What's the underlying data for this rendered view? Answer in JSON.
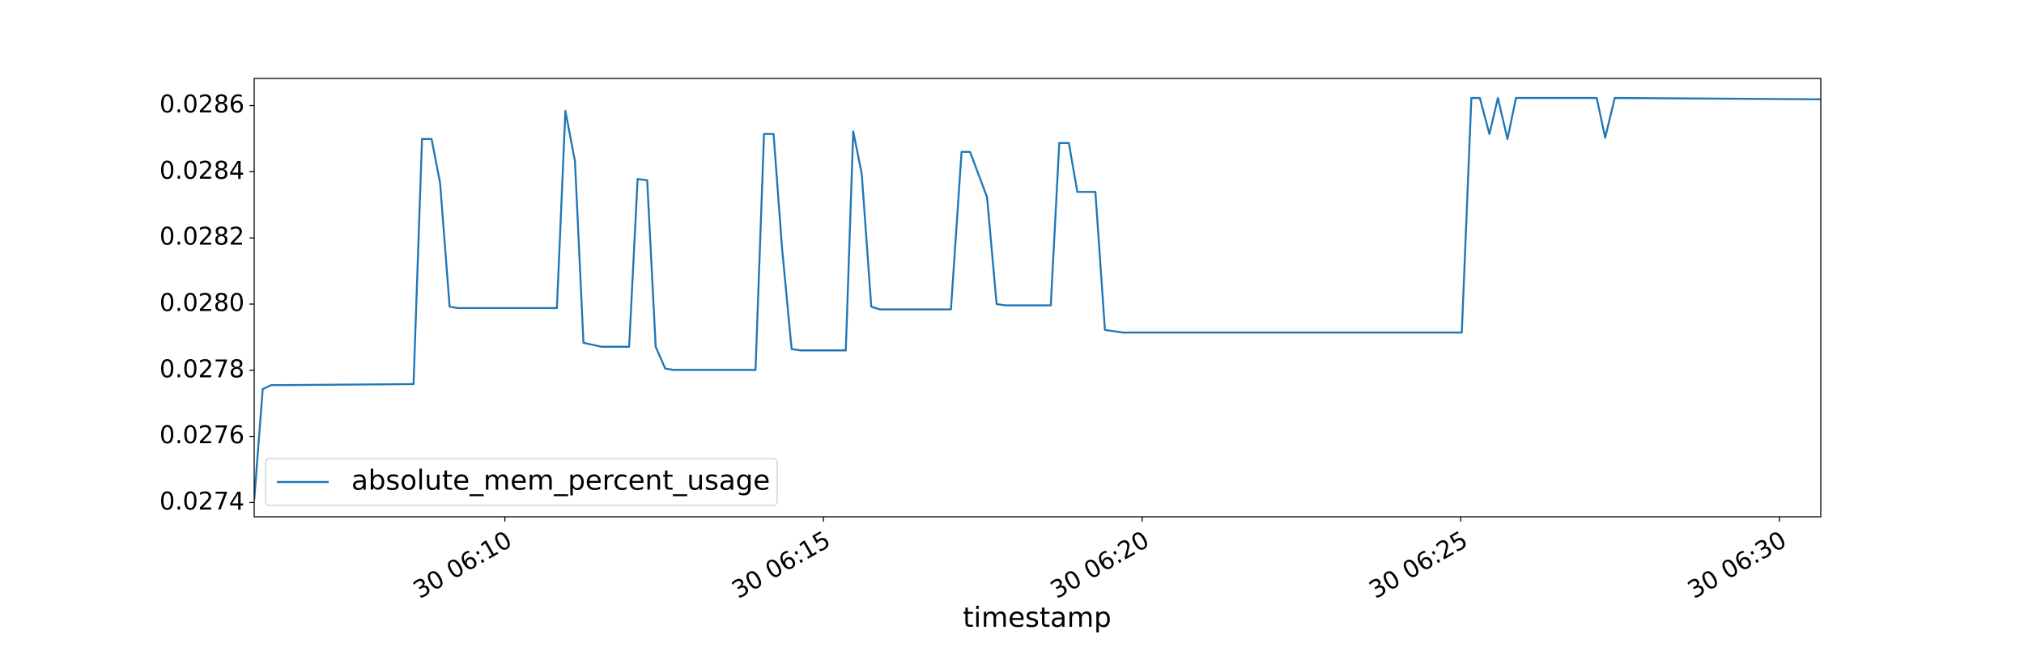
{
  "chart_data": {
    "type": "line",
    "x_label": "timestamp",
    "x": [
      "30 06:06:04",
      "30 06:06:12",
      "30 06:06:20",
      "30 06:06:30",
      "30 06:08:34",
      "30 06:08:42",
      "30 06:08:51",
      "30 06:08:59",
      "30 06:09:08",
      "30 06:09:16",
      "30 06:10:49",
      "30 06:10:57",
      "30 06:11:06",
      "30 06:11:14",
      "30 06:11:31",
      "30 06:11:57",
      "30 06:12:05",
      "30 06:12:14",
      "30 06:12:22",
      "30 06:12:31",
      "30 06:12:39",
      "30 06:13:56",
      "30 06:14:04",
      "30 06:14:13",
      "30 06:14:21",
      "30 06:14:30",
      "30 06:14:38",
      "30 06:15:21",
      "30 06:15:28",
      "30 06:15:36",
      "30 06:15:45",
      "30 06:15:53",
      "30 06:17:00",
      "30 06:17:10",
      "30 06:17:18",
      "30 06:17:34",
      "30 06:17:43",
      "30 06:17:51",
      "30 06:18:34",
      "30 06:18:42",
      "30 06:18:51",
      "30 06:18:59",
      "30 06:19:16",
      "30 06:19:25",
      "30 06:19:42",
      "30 06:25:01",
      "30 06:25:10",
      "30 06:25:18",
      "30 06:25:27",
      "30 06:25:35",
      "30 06:25:44",
      "30 06:25:52",
      "30 06:27:08",
      "30 06:27:16",
      "30 06:27:25",
      "30 06:30:39"
    ],
    "series": [
      {
        "name": "absolute_mem_percent_usage",
        "color": "#1f77b4",
        "values": [
          0.027408,
          0.027743,
          0.027755,
          0.027755,
          0.027758,
          0.028499,
          0.028499,
          0.028366,
          0.027992,
          0.027988,
          0.027988,
          0.028584,
          0.028432,
          0.027883,
          0.027871,
          0.027871,
          0.028378,
          0.028374,
          0.027871,
          0.027805,
          0.027801,
          0.027801,
          0.028514,
          0.028514,
          0.028168,
          0.027864,
          0.02786,
          0.02786,
          0.028522,
          0.028394,
          0.027992,
          0.027984,
          0.027984,
          0.02846,
          0.02846,
          0.028323,
          0.028,
          0.027996,
          0.027996,
          0.028487,
          0.028487,
          0.028339,
          0.028339,
          0.027922,
          0.027914,
          0.027914,
          0.028623,
          0.028623,
          0.028514,
          0.028623,
          0.028499,
          0.028623,
          0.028623,
          0.028503,
          0.028623,
          0.028619
        ]
      }
    ],
    "xlim": [
      "30 06:06:04",
      "30 06:30:39"
    ],
    "xticks": [
      {
        "value": "30 06:10:00",
        "label": "30 06:10"
      },
      {
        "value": "30 06:15:00",
        "label": "30 06:15"
      },
      {
        "value": "30 06:20:00",
        "label": "30 06:20"
      },
      {
        "value": "30 06:25:00",
        "label": "30 06:25"
      },
      {
        "value": "30 06:30:00",
        "label": "30 06:30"
      }
    ],
    "ylim": [
      0.027357,
      0.028682
    ],
    "yticks": [
      0.0274,
      0.0276,
      0.0278,
      {
        "value": 0.028,
        "label": "0.0280"
      },
      0.0282,
      0.0284,
      0.0286
    ],
    "grid": false,
    "legend": "lower left"
  }
}
